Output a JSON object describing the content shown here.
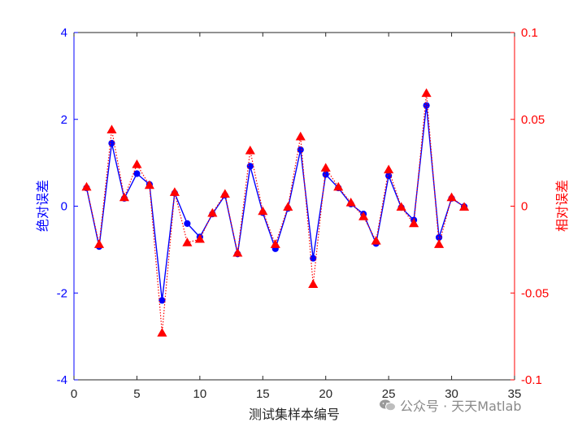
{
  "chart_data": {
    "type": "line",
    "xlabel": "测试集样本编号",
    "ylabel_left": "绝对误差",
    "ylabel_right": "相对误差",
    "xlim": [
      0,
      35
    ],
    "ylim_left": [
      -4,
      4
    ],
    "ylim_right": [
      -0.1,
      0.1
    ],
    "xticks": [
      0,
      5,
      10,
      15,
      20,
      25,
      30,
      35
    ],
    "yticks_left": [
      -4,
      -2,
      0,
      2,
      4
    ],
    "yticks_right": [
      -0.1,
      -0.05,
      0,
      0.05,
      0.1
    ],
    "yticklabels_right": [
      "-0.1",
      "-0.05",
      "0",
      "0.05",
      "0.1"
    ],
    "left_color": "#0000ff",
    "right_color": "#ff0000",
    "x": [
      1,
      2,
      3,
      4,
      5,
      6,
      7,
      8,
      9,
      10,
      11,
      12,
      13,
      14,
      15,
      16,
      17,
      18,
      19,
      20,
      21,
      22,
      23,
      24,
      25,
      26,
      27,
      28,
      29,
      30,
      31
    ],
    "series": [
      {
        "axis": "left",
        "style": "solid-circle",
        "values": [
          0.42,
          -0.93,
          1.45,
          0.18,
          0.75,
          0.5,
          -2.17,
          0.3,
          -0.4,
          -0.71,
          -0.18,
          0.25,
          -1.1,
          0.92,
          -0.15,
          -0.98,
          -0.05,
          1.3,
          -1.2,
          0.73,
          0.42,
          0.05,
          -0.18,
          -0.86,
          0.7,
          -0.03,
          -0.32,
          2.32,
          -0.72,
          0.18,
          -0.01
        ]
      },
      {
        "axis": "right",
        "style": "dotted-triangle",
        "values": [
          0.011,
          -0.022,
          0.044,
          0.005,
          0.024,
          0.012,
          -0.073,
          0.008,
          -0.021,
          -0.019,
          -0.004,
          0.007,
          -0.027,
          0.032,
          -0.003,
          -0.022,
          -0.0005,
          0.04,
          -0.045,
          0.022,
          0.011,
          0.002,
          -0.006,
          -0.02,
          0.021,
          -0.0005,
          -0.01,
          0.065,
          -0.022,
          0.005,
          -0.0005
        ]
      }
    ]
  },
  "watermark": {
    "text": "公众号 · 天天Matlab"
  }
}
